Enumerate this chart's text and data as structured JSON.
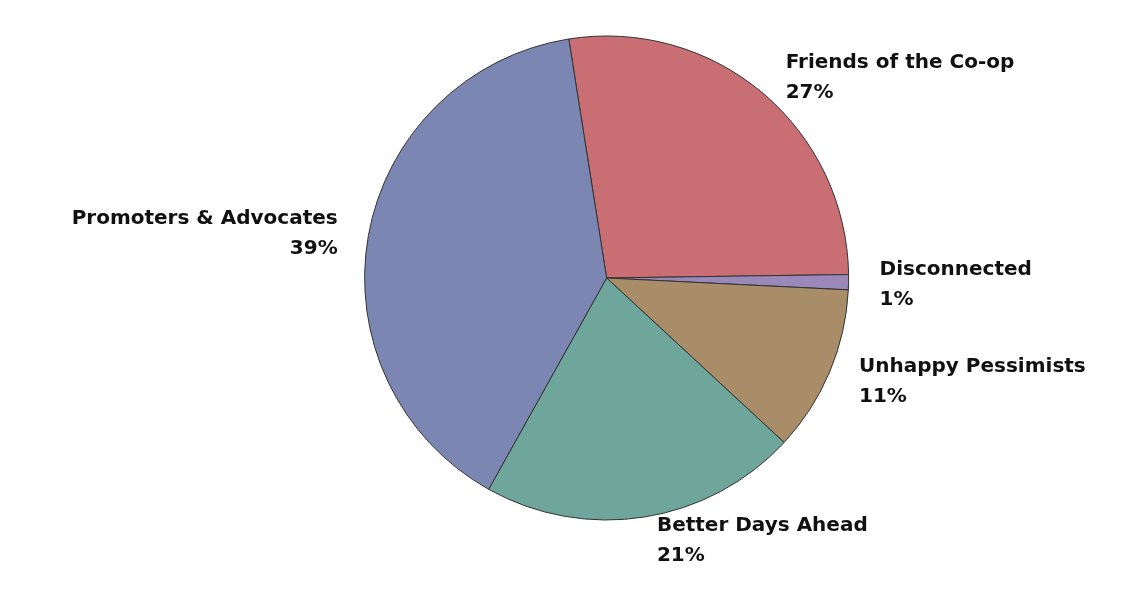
{
  "chart_data": {
    "type": "pie",
    "categories": [
      "Friends of the Co-op",
      "Disconnected",
      "Unhappy Pessimists",
      "Better Days Ahead",
      "Promoters & Advocates"
    ],
    "values": [
      27,
      1,
      11,
      21,
      39
    ],
    "value_labels": [
      "27%",
      "1%",
      "11%",
      "21%",
      "39%"
    ],
    "colors": [
      "#c96e72",
      "#9a88b8",
      "#a98d69",
      "#6fa69b",
      "#7b87b2"
    ]
  }
}
